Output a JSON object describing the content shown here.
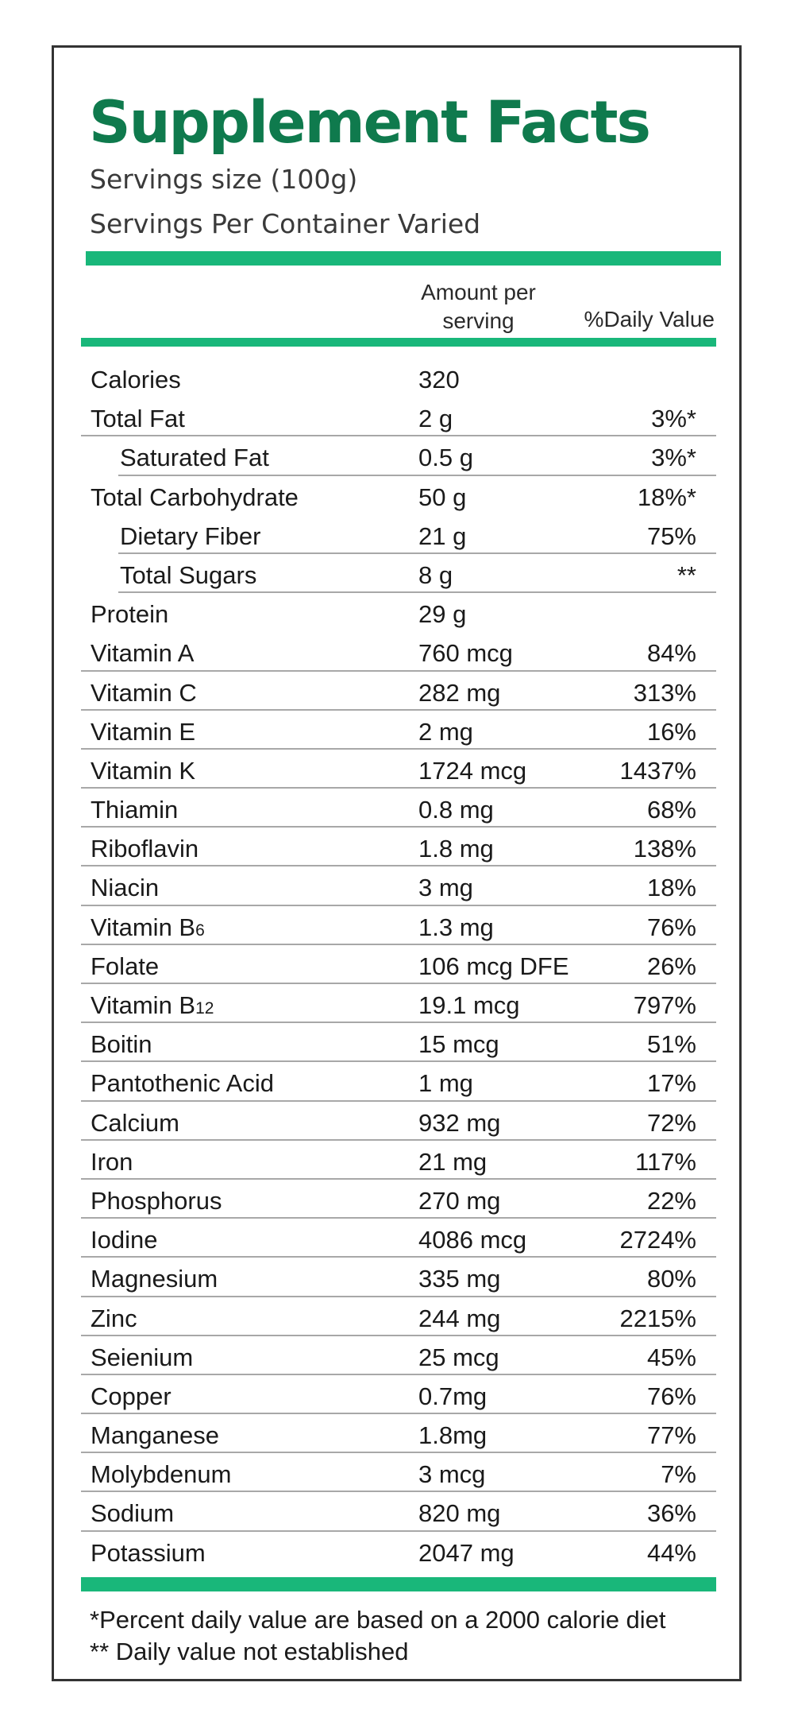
{
  "label": {
    "title": "Supplement Facts",
    "serving_size": "Servings size (100g)",
    "servings_per_container": "Servings Per Container Varied"
  },
  "header": {
    "amount_line1": "Amount per",
    "amount_line2": "serving",
    "daily_value": "%Daily Value"
  },
  "colors": {
    "title_green": "#0f7a4d",
    "bar_green": "#19b77a"
  },
  "rows": [
    {
      "name": "Calories",
      "amount": "320",
      "dv": ""
    },
    {
      "name": "Total Fat",
      "amount": "2 g",
      "dv": "3%*"
    },
    {
      "name": "Saturated Fat",
      "amount": "0.5 g",
      "dv": "3%*"
    },
    {
      "name": "Total Carbohydrate",
      "amount": "50 g",
      "dv": "18%*"
    },
    {
      "name": "Dietary Fiber",
      "amount": "21 g",
      "dv": "75%"
    },
    {
      "name": "Total Sugars",
      "amount": "8 g",
      "dv": "**"
    },
    {
      "name": "Protein",
      "amount": "29 g",
      "dv": ""
    },
    {
      "name": "Vitamin A",
      "amount": "760 mcg",
      "dv": "84%"
    },
    {
      "name": "Vitamin C",
      "amount": "282 mg",
      "dv": "313%"
    },
    {
      "name": "Vitamin E",
      "amount": "2 mg",
      "dv": "16%"
    },
    {
      "name": "Vitamin K",
      "amount": "1724 mcg",
      "dv": "1437%"
    },
    {
      "name": "Thiamin",
      "amount": "0.8 mg",
      "dv": "68%"
    },
    {
      "name": "Riboflavin",
      "amount": "1.8 mg",
      "dv": "138%"
    },
    {
      "name": "Niacin",
      "amount": "3 mg",
      "dv": "18%"
    },
    {
      "name": "Vitamin B",
      "name_suffix": "6",
      "amount": "1.3 mg",
      "dv": "76%"
    },
    {
      "name": "Folate",
      "amount": "106 mcg DFE",
      "dv": "26%"
    },
    {
      "name": "Vitamin B",
      "name_suffix": "12",
      "amount": "19.1 mcg",
      "dv": "797%"
    },
    {
      "name": "Boitin",
      "amount": "15 mcg",
      "dv": "51%"
    },
    {
      "name": "Pantothenic Acid",
      "amount": "1 mg",
      "dv": "17%"
    },
    {
      "name": "Calcium",
      "amount": "932 mg",
      "dv": "72%"
    },
    {
      "name": "Iron",
      "amount": "21 mg",
      "dv": "117%"
    },
    {
      "name": "Phosphorus",
      "amount": "270 mg",
      "dv": "22%"
    },
    {
      "name": "Iodine",
      "amount": "4086 mcg",
      "dv": "2724%"
    },
    {
      "name": "Magnesium",
      "amount": "335 mg",
      "dv": "80%"
    },
    {
      "name": "Zinc",
      "amount": "244 mg",
      "dv": "2215%"
    },
    {
      "name": "Seienium",
      "amount": "25 mcg",
      "dv": "45%"
    },
    {
      "name": "Copper",
      "amount": "0.7mg",
      "dv": "76%"
    },
    {
      "name": "Manganese",
      "amount": "1.8mg",
      "dv": "77%"
    },
    {
      "name": "Molybdenum",
      "amount": "3 mcg",
      "dv": "7%"
    },
    {
      "name": "Sodium",
      "amount": "820 mg",
      "dv": "36%"
    },
    {
      "name": "Potassium",
      "amount": "2047 mg",
      "dv": "44%"
    }
  ],
  "footnotes": {
    "percent_note": "*Percent daily value are based on a 2000 calorie diet",
    "not_established": "** Daily value not established"
  }
}
